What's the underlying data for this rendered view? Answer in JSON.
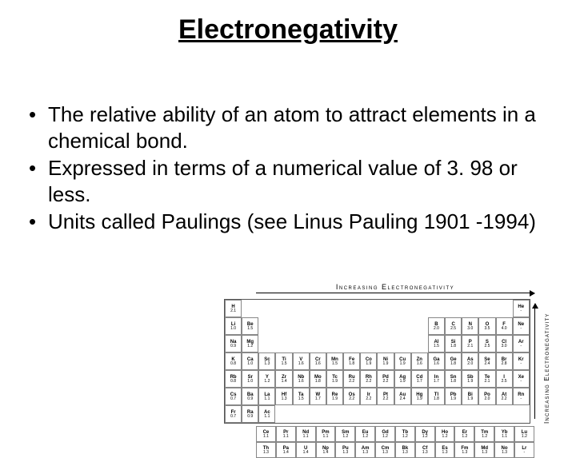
{
  "title": "Electronegativity",
  "bullets": [
    "The relative ability of an atom to attract elements in a chemical bond.",
    "Expressed in terms of a numerical value of 3. 98 or less.",
    "Units called Paulings  (see Linus Pauling 1901 -1994)"
  ],
  "figure": {
    "top_label": "Increasing Electronegativity",
    "side_label": "Increasing Electronegativity",
    "colors": {
      "border": "#888888",
      "text": "#000000",
      "background": "#ffffff"
    },
    "main_block_cols": 18,
    "layout_notes": "standard periodic table shape: groups 1-2 then gap then 13-18 for periods 1-3; full 18 for periods 4-7; lanthanide+actinide row below",
    "rows": [
      [
        {
          "sym": "H",
          "val": "2.1"
        },
        null,
        null,
        null,
        null,
        null,
        null,
        null,
        null,
        null,
        null,
        null,
        null,
        null,
        null,
        null,
        null,
        {
          "sym": "He",
          "val": "-"
        }
      ],
      [
        {
          "sym": "Li",
          "val": "1.0"
        },
        {
          "sym": "Be",
          "val": "1.5"
        },
        null,
        null,
        null,
        null,
        null,
        null,
        null,
        null,
        null,
        null,
        {
          "sym": "B",
          "val": "2.0"
        },
        {
          "sym": "C",
          "val": "2.5"
        },
        {
          "sym": "N",
          "val": "3.0"
        },
        {
          "sym": "O",
          "val": "3.5"
        },
        {
          "sym": "F",
          "val": "4.0"
        },
        {
          "sym": "Ne",
          "val": "-"
        }
      ],
      [
        {
          "sym": "Na",
          "val": "0.9"
        },
        {
          "sym": "Mg",
          "val": "1.2"
        },
        null,
        null,
        null,
        null,
        null,
        null,
        null,
        null,
        null,
        null,
        {
          "sym": "Al",
          "val": "1.5"
        },
        {
          "sym": "Si",
          "val": "1.8"
        },
        {
          "sym": "P",
          "val": "2.1"
        },
        {
          "sym": "S",
          "val": "2.5"
        },
        {
          "sym": "Cl",
          "val": "3.0"
        },
        {
          "sym": "Ar",
          "val": "-"
        }
      ],
      [
        {
          "sym": "K",
          "val": "0.8"
        },
        {
          "sym": "Ca",
          "val": "1.0"
        },
        {
          "sym": "Sc",
          "val": "1.3"
        },
        {
          "sym": "Ti",
          "val": "1.5"
        },
        {
          "sym": "V",
          "val": "1.6"
        },
        {
          "sym": "Cr",
          "val": "1.6"
        },
        {
          "sym": "Mn",
          "val": "1.5"
        },
        {
          "sym": "Fe",
          "val": "1.8"
        },
        {
          "sym": "Co",
          "val": "1.9"
        },
        {
          "sym": "Ni",
          "val": "1.9"
        },
        {
          "sym": "Cu",
          "val": "1.9"
        },
        {
          "sym": "Zn",
          "val": "1.6"
        },
        {
          "sym": "Ga",
          "val": "1.6"
        },
        {
          "sym": "Ge",
          "val": "1.8"
        },
        {
          "sym": "As",
          "val": "2.0"
        },
        {
          "sym": "Se",
          "val": "2.4"
        },
        {
          "sym": "Br",
          "val": "2.8"
        },
        {
          "sym": "Kr",
          "val": "-"
        }
      ],
      [
        {
          "sym": "Rb",
          "val": "0.8"
        },
        {
          "sym": "Sr",
          "val": "1.0"
        },
        {
          "sym": "Y",
          "val": "1.2"
        },
        {
          "sym": "Zr",
          "val": "1.4"
        },
        {
          "sym": "Nb",
          "val": "1.6"
        },
        {
          "sym": "Mo",
          "val": "1.8"
        },
        {
          "sym": "Tc",
          "val": "1.9"
        },
        {
          "sym": "Ru",
          "val": "2.2"
        },
        {
          "sym": "Rh",
          "val": "2.2"
        },
        {
          "sym": "Pd",
          "val": "2.2"
        },
        {
          "sym": "Ag",
          "val": "1.9"
        },
        {
          "sym": "Cd",
          "val": "1.7"
        },
        {
          "sym": "In",
          "val": "1.7"
        },
        {
          "sym": "Sn",
          "val": "1.8"
        },
        {
          "sym": "Sb",
          "val": "1.9"
        },
        {
          "sym": "Te",
          "val": "2.1"
        },
        {
          "sym": "I",
          "val": "2.5"
        },
        {
          "sym": "Xe",
          "val": "-"
        }
      ],
      [
        {
          "sym": "Cs",
          "val": "0.7"
        },
        {
          "sym": "Ba",
          "val": "0.9"
        },
        {
          "sym": "La",
          "val": "1.1"
        },
        {
          "sym": "Hf",
          "val": "1.3"
        },
        {
          "sym": "Ta",
          "val": "1.5"
        },
        {
          "sym": "W",
          "val": "1.7"
        },
        {
          "sym": "Re",
          "val": "1.9"
        },
        {
          "sym": "Os",
          "val": "2.2"
        },
        {
          "sym": "Ir",
          "val": "2.2"
        },
        {
          "sym": "Pt",
          "val": "2.2"
        },
        {
          "sym": "Au",
          "val": "2.4"
        },
        {
          "sym": "Hg",
          "val": "1.9"
        },
        {
          "sym": "Tl",
          "val": "1.8"
        },
        {
          "sym": "Pb",
          "val": "1.9"
        },
        {
          "sym": "Bi",
          "val": "1.9"
        },
        {
          "sym": "Po",
          "val": "2.0"
        },
        {
          "sym": "At",
          "val": "2.2"
        },
        {
          "sym": "Rn",
          "val": "-"
        }
      ],
      [
        {
          "sym": "Fr",
          "val": "0.7"
        },
        {
          "sym": "Ra",
          "val": "0.9"
        },
        {
          "sym": "Ac",
          "val": "1.1"
        },
        null,
        null,
        null,
        null,
        null,
        null,
        null,
        null,
        null,
        null,
        null,
        null,
        null,
        null,
        null
      ]
    ],
    "fblock": [
      [
        {
          "sym": "Ce",
          "val": "1.1"
        },
        {
          "sym": "Pr",
          "val": "1.1"
        },
        {
          "sym": "Nd",
          "val": "1.1"
        },
        {
          "sym": "Pm",
          "val": "1.1"
        },
        {
          "sym": "Sm",
          "val": "1.2"
        },
        {
          "sym": "Eu",
          "val": "1.2"
        },
        {
          "sym": "Gd",
          "val": "1.2"
        },
        {
          "sym": "Tb",
          "val": "1.2"
        },
        {
          "sym": "Dy",
          "val": "1.2"
        },
        {
          "sym": "Ho",
          "val": "1.2"
        },
        {
          "sym": "Er",
          "val": "1.2"
        },
        {
          "sym": "Tm",
          "val": "1.2"
        },
        {
          "sym": "Yb",
          "val": "1.1"
        },
        {
          "sym": "Lu",
          "val": "1.2"
        }
      ],
      [
        {
          "sym": "Th",
          "val": "1.3"
        },
        {
          "sym": "Pa",
          "val": "1.4"
        },
        {
          "sym": "U",
          "val": "1.4"
        },
        {
          "sym": "Np",
          "val": "1.4"
        },
        {
          "sym": "Pu",
          "val": "1.3"
        },
        {
          "sym": "Am",
          "val": "1.3"
        },
        {
          "sym": "Cm",
          "val": "1.3"
        },
        {
          "sym": "Bk",
          "val": "1.3"
        },
        {
          "sym": "Cf",
          "val": "1.3"
        },
        {
          "sym": "Es",
          "val": "1.3"
        },
        {
          "sym": "Fm",
          "val": "1.3"
        },
        {
          "sym": "Md",
          "val": "1.3"
        },
        {
          "sym": "No",
          "val": "1.3"
        },
        {
          "sym": "Lr",
          "val": "-"
        }
      ]
    ]
  }
}
